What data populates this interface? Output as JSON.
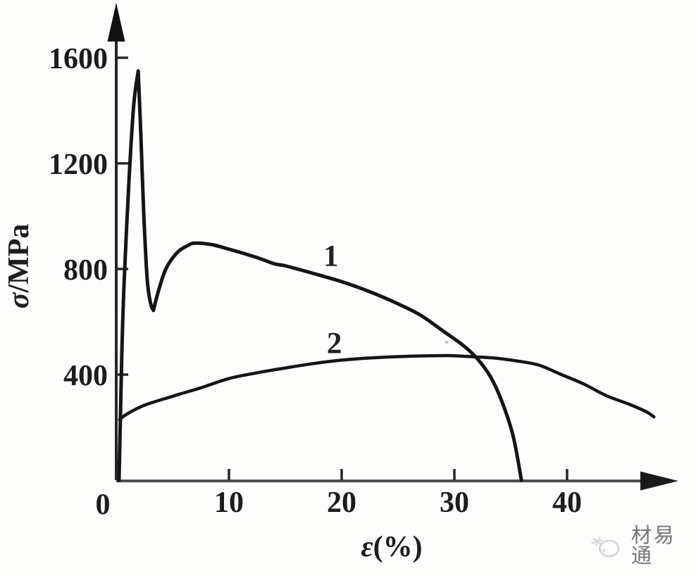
{
  "watermark": {
    "text": "材易通"
  },
  "chart_data": {
    "type": "line",
    "title": "",
    "xlabel": {
      "symbol": "ε",
      "rest": "(%)"
    },
    "ylabel": {
      "symbol": "σ",
      "rest": "/MPa"
    },
    "xlim": [
      0,
      49.5
    ],
    "ylim": [
      0,
      1780
    ],
    "x_ticks": [
      10,
      20,
      30,
      40
    ],
    "x_tick_labels": [
      "10",
      "20",
      "30",
      "40"
    ],
    "origin_label": "0",
    "y_ticks": [
      400,
      800,
      1200,
      1600
    ],
    "y_tick_labels": [
      "400",
      "800",
      "1200",
      "1600"
    ],
    "grid": false,
    "legend": "none",
    "axis_color": "#262626",
    "x_axis_color": "#4e4e4e",
    "curve_color": "#151515",
    "series": [
      {
        "name": "1",
        "label": "1",
        "label_at": {
          "x": 19.05,
          "y": 812
        },
        "stroke_width": 5,
        "segments": [
          [
            [
              0.25,
              0
            ],
            [
              0.5,
              485
            ],
            [
              0.7,
              750
            ],
            [
              1.15,
              1150
            ],
            [
              1.55,
              1420
            ],
            [
              1.95,
              1550
            ]
          ],
          [
            [
              1.95,
              1550
            ],
            [
              2.2,
              1290
            ],
            [
              2.45,
              1000
            ],
            [
              2.75,
              760
            ],
            [
              3.05,
              670
            ],
            [
              3.3,
              643
            ]
          ],
          [
            [
              3.3,
              643
            ],
            [
              3.7,
              710
            ],
            [
              4.4,
              800
            ],
            [
              5.4,
              862
            ],
            [
              6.4,
              890
            ],
            [
              7.0,
              898
            ],
            [
              8.5,
              892
            ],
            [
              10,
              875
            ],
            [
              12.5,
              843
            ],
            [
              14,
              820
            ],
            [
              15,
              812
            ],
            [
              17.5,
              783
            ],
            [
              20,
              752
            ],
            [
              22.5,
              714
            ],
            [
              25,
              668
            ],
            [
              27,
              625
            ],
            [
              29,
              565
            ],
            [
              30.8,
              510
            ],
            [
              32,
              462
            ],
            [
              33.2,
              392
            ],
            [
              34.2,
              300
            ],
            [
              35.2,
              170
            ],
            [
              35.95,
              0
            ]
          ]
        ]
      },
      {
        "name": "2",
        "label": "2",
        "label_at": {
          "x": 19.35,
          "y": 482
        },
        "stroke_width": 4.5,
        "segments": [
          [
            [
              0.3,
              230
            ],
            [
              1,
              252
            ],
            [
              2.5,
              284
            ],
            [
              5,
              318
            ],
            [
              7.5,
              350
            ],
            [
              10,
              385
            ],
            [
              12.5,
              407
            ],
            [
              15,
              425
            ],
            [
              17.5,
              442
            ],
            [
              20,
              455
            ],
            [
              22.5,
              463
            ],
            [
              25,
              468
            ],
            [
              27.5,
              471
            ],
            [
              29.5,
              472
            ],
            [
              31.5,
              468
            ],
            [
              33.5,
              463
            ],
            [
              35.5,
              452
            ],
            [
              37.5,
              436
            ],
            [
              39.5,
              400
            ],
            [
              41.5,
              364
            ],
            [
              43.5,
              320
            ],
            [
              45.5,
              288
            ],
            [
              47,
              260
            ],
            [
              47.7,
              240
            ]
          ]
        ]
      }
    ]
  }
}
